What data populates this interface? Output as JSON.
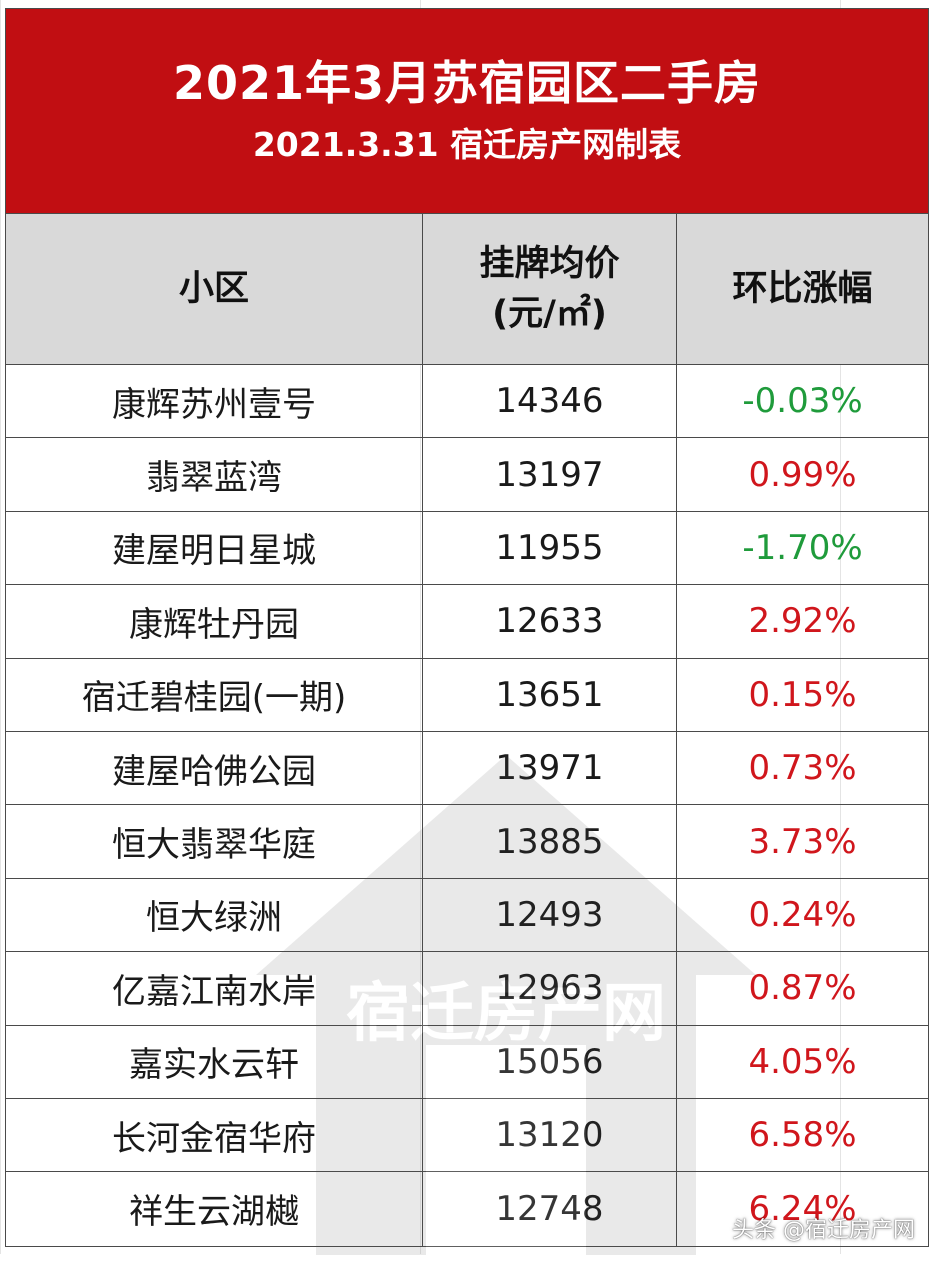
{
  "header": {
    "title": "2021年3月苏宿园区二手房",
    "subtitle": "2021.3.31 宿迁房产网制表"
  },
  "columns": {
    "name": "小区",
    "price_line1": "挂牌均价",
    "price_line2": "(元/㎡)",
    "change": "环比涨幅"
  },
  "rows": [
    {
      "name": "康辉苏州壹号",
      "price": "14346",
      "change": "-0.03%",
      "trend": "down"
    },
    {
      "name": "翡翠蓝湾",
      "price": "13197",
      "change": "0.99%",
      "trend": "up"
    },
    {
      "name": "建屋明日星城",
      "price": "11955",
      "change": "-1.70%",
      "trend": "down"
    },
    {
      "name": "康辉牡丹园",
      "price": "12633",
      "change": "2.92%",
      "trend": "up"
    },
    {
      "name": "宿迁碧桂园(一期)",
      "price": "13651",
      "change": "0.15%",
      "trend": "up"
    },
    {
      "name": "建屋哈佛公园",
      "price": "13971",
      "change": "0.73%",
      "trend": "up"
    },
    {
      "name": "恒大翡翠华庭",
      "price": "13885",
      "change": "3.73%",
      "trend": "up"
    },
    {
      "name": "恒大绿洲",
      "price": "12493",
      "change": "0.24%",
      "trend": "up"
    },
    {
      "name": "亿嘉江南水岸",
      "price": "12963",
      "change": "0.87%",
      "trend": "up"
    },
    {
      "name": "嘉实水云轩",
      "price": "15056",
      "change": "4.05%",
      "trend": "up"
    },
    {
      "name": "长河金宿华府",
      "price": "13120",
      "change": "6.58%",
      "trend": "up"
    },
    {
      "name": "祥生云湖樾",
      "price": "12748",
      "change": "6.24%",
      "trend": "up"
    }
  ],
  "colors": {
    "header_bg": "#c10e12",
    "up": "#d0161c",
    "down": "#1f9b3b"
  },
  "watermark_text": "宿迁房产网",
  "corner_mark": "头条 @宿迁房产网"
}
